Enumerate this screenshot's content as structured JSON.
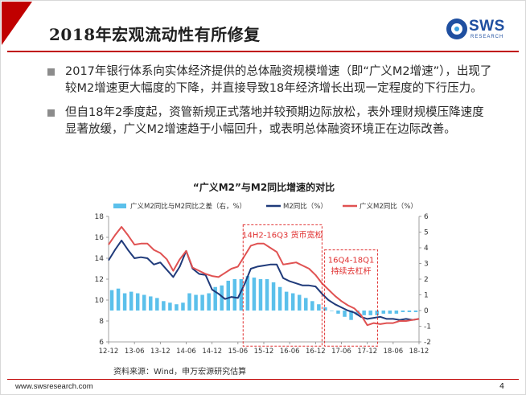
{
  "header": {
    "title": "2018年宏观流动性有所修复",
    "logo_text": "SWS",
    "logo_sub": "RESEARCH"
  },
  "bullets": [
    "2017年银行体系向实体经济提供的总体融资规模增速（即“广义M2增速”），出现了较M2增速更大幅度的下降，并直接导致18年经济增长出现一定程度的下行压力。",
    "但自18年2季度起，资管新规正式落地并较预期边际放松，表外理财规模压降速度显著放缓，广义M2增速趋于小幅回升，或表明总体融资环境正在边际改善。"
  ],
  "colors": {
    "accent": "#c00000",
    "bar": "#5bc0eb",
    "m2_line": "#1f3a7a",
    "broad_line": "#e05252",
    "annotation": "#e03030"
  },
  "chart_data": {
    "type": "line",
    "title": "“广义M2”与M2同比增速的对比",
    "legend": {
      "placement": "top",
      "items": [
        "广义M2同比与M2同比之差（右，%）",
        "M2同比（%）",
        "广义M2同比（%）"
      ]
    },
    "x_ticks": [
      "12-12",
      "13-06",
      "13-12",
      "14-06",
      "14-12",
      "15-06",
      "15-12",
      "16-06",
      "16-12",
      "17-06",
      "17-12",
      "18-06",
      "18-12"
    ],
    "y_left": {
      "ticks": [
        "6",
        "8",
        "10",
        "12",
        "14",
        "16",
        "18"
      ],
      "range": [
        6,
        18
      ]
    },
    "y_right": {
      "ticks": [
        "-2",
        "-1",
        "0",
        "1",
        "2",
        "3",
        "4",
        "5",
        "6"
      ],
      "range": [
        -2,
        6
      ]
    },
    "grid": false,
    "x_range": [
      0,
      24
    ],
    "series": [
      {
        "name": "M2同比（%）",
        "axis": "left",
        "x": [
          0,
          0.5,
          1,
          1.5,
          2,
          2.5,
          3,
          3.5,
          4,
          4.5,
          5,
          5.5,
          6,
          6.5,
          7,
          7.5,
          8,
          8.5,
          9,
          9.5,
          10,
          10.5,
          11,
          11.5,
          12,
          12.5,
          13,
          13.5,
          14,
          14.5,
          15,
          15.5,
          16,
          16.5,
          17,
          17.5,
          18,
          18.5,
          19,
          19.5,
          20,
          20.5,
          21,
          21.5,
          22,
          22.5,
          23,
          23.5,
          24
        ],
        "values": [
          13.8,
          14.8,
          15.7,
          14.8,
          14.0,
          14.1,
          14.0,
          13.4,
          13.6,
          12.9,
          12.2,
          13.2,
          14.7,
          13.0,
          12.5,
          12.4,
          11.0,
          10.6,
          10.1,
          10.3,
          10.2,
          11.5,
          13.0,
          13.2,
          13.3,
          13.4,
          13.4,
          12.1,
          11.8,
          11.6,
          11.4,
          11.4,
          11.3,
          10.6,
          10.0,
          9.6,
          9.3,
          9.0,
          8.8,
          8.4,
          8.2,
          8.3,
          8.4,
          8.2,
          8.2,
          8.1,
          8.2,
          8.1,
          8.2
        ]
      },
      {
        "name": "广义M2同比（%）",
        "axis": "left",
        "x": [
          0,
          0.5,
          1,
          1.5,
          2,
          2.5,
          3,
          3.5,
          4,
          4.5,
          5,
          5.5,
          6,
          6.5,
          7,
          7.5,
          8,
          8.5,
          9,
          9.5,
          10,
          10.5,
          11,
          11.5,
          12,
          12.5,
          13,
          13.5,
          14,
          14.5,
          15,
          15.5,
          16,
          16.5,
          17,
          17.5,
          18,
          18.5,
          19,
          19.5,
          20,
          20.5,
          21,
          21.5,
          22,
          22.5,
          23,
          23.5,
          24
        ],
        "values": [
          15.3,
          16.2,
          17.0,
          16.2,
          15.3,
          15.4,
          15.4,
          14.8,
          14.5,
          13.9,
          12.8,
          13.9,
          14.7,
          13.1,
          12.8,
          12.5,
          12.3,
          12.2,
          12.6,
          13.0,
          13.2,
          14.2,
          15.2,
          15.4,
          15.4,
          15.0,
          14.6,
          13.4,
          13.5,
          13.6,
          13.3,
          13.0,
          12.4,
          11.6,
          11.0,
          10.4,
          9.9,
          9.5,
          9.2,
          8.6,
          7.6,
          7.8,
          7.7,
          7.8,
          7.8,
          8.0,
          8.0,
          8.1,
          8.2
        ]
      },
      {
        "name": "广义M2同比与M2同比之差（右，%）",
        "axis": "right",
        "type": "bar",
        "x": [
          0.25,
          0.75,
          1.25,
          1.75,
          2.25,
          2.75,
          3.25,
          3.75,
          4.25,
          4.75,
          5.25,
          5.75,
          6.25,
          6.75,
          7.25,
          7.75,
          8.25,
          8.75,
          9.25,
          9.75,
          10.25,
          10.75,
          11.25,
          11.75,
          12.25,
          12.75,
          13.25,
          13.75,
          14.25,
          14.75,
          15.25,
          15.75,
          16.25,
          16.75,
          17.25,
          17.75,
          18.25,
          18.75,
          19.25,
          19.75,
          20.25,
          20.75,
          21.25,
          21.75,
          22.25,
          22.75,
          23.25,
          23.75
        ],
        "values": [
          1.3,
          1.4,
          1.1,
          1.2,
          1.1,
          1.0,
          0.9,
          0.8,
          0.6,
          0.5,
          0.4,
          0.5,
          1.1,
          1.0,
          1.0,
          1.1,
          1.5,
          1.6,
          1.9,
          2.0,
          2.0,
          2.2,
          2.1,
          2.0,
          2.0,
          1.8,
          1.5,
          1.2,
          1.1,
          1.0,
          0.8,
          0.6,
          0.4,
          0.2,
          0.0,
          -0.2,
          -0.4,
          -0.6,
          -0.3,
          -0.3,
          -0.3,
          -0.3,
          -0.2,
          -0.2,
          -0.2,
          -0.1,
          -0.1,
          -0.1
        ]
      }
    ],
    "annotations": [
      {
        "label": "14H2-16Q3  货币宽松",
        "x_from": 10.4,
        "x_to": 16.5,
        "y_from": 5.6,
        "y_to": 17.2
      },
      {
        "label": "16Q4-18Q1\n持续去杠杆",
        "x_from": 16.7,
        "x_to": 20.8,
        "y_from": 5.6,
        "y_to": 14.8
      }
    ]
  },
  "source": "资料来源：Wind，申万宏源研究估算",
  "footer": {
    "url": "www.swsresearch.com",
    "page": "4"
  }
}
